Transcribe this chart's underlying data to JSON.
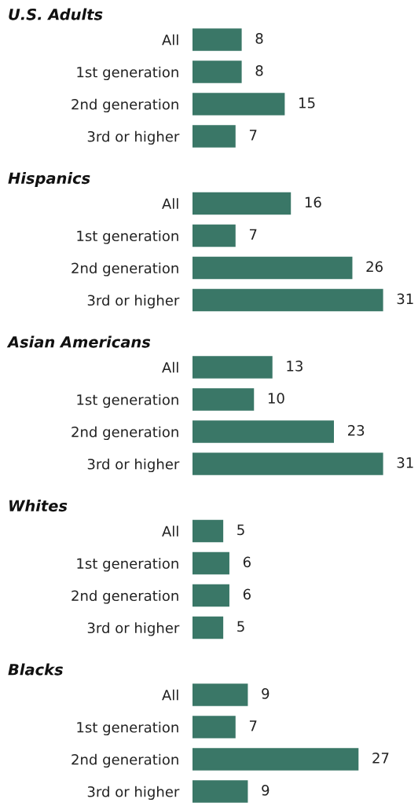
{
  "chart_data": [
    {
      "type": "bar",
      "orientation": "horizontal",
      "title": "U.S. Adults",
      "categories": [
        "All",
        "1st generation",
        "2nd generation",
        "3rd or higher"
      ],
      "values": [
        8,
        8,
        15,
        7
      ],
      "color": "#3a7767",
      "data_labels": true
    },
    {
      "type": "bar",
      "orientation": "horizontal",
      "title": "Hispanics",
      "categories": [
        "All",
        "1st generation",
        "2nd generation",
        "3rd or higher"
      ],
      "values": [
        16,
        7,
        26,
        31
      ],
      "color": "#3a7767",
      "data_labels": true
    },
    {
      "type": "bar",
      "orientation": "horizontal",
      "title": "Asian Americans",
      "categories": [
        "All",
        "1st generation",
        "2nd generation",
        "3rd or higher"
      ],
      "values": [
        13,
        10,
        23,
        31
      ],
      "color": "#3a7767",
      "data_labels": true
    },
    {
      "type": "bar",
      "orientation": "horizontal",
      "title": "Whites",
      "categories": [
        "All",
        "1st generation",
        "2nd generation",
        "3rd or higher"
      ],
      "values": [
        5,
        6,
        6,
        5
      ],
      "color": "#3a7767",
      "data_labels": true
    },
    {
      "type": "bar",
      "orientation": "horizontal",
      "title": "Blacks",
      "categories": [
        "All",
        "1st generation",
        "2nd generation",
        "3rd or higher"
      ],
      "values": [
        9,
        7,
        27,
        9
      ],
      "color": "#3a7767",
      "data_labels": true
    }
  ]
}
